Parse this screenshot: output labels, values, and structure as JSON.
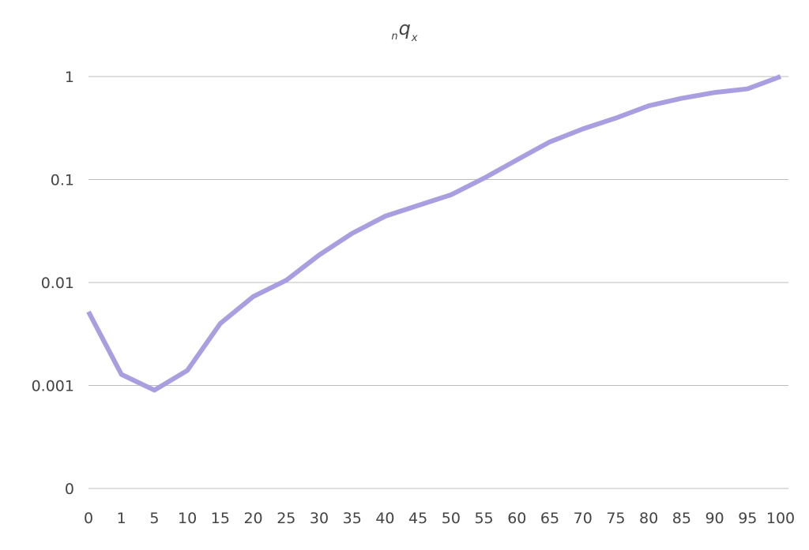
{
  "chart_data": {
    "type": "line",
    "title": "q",
    "title_left_subscript": "n",
    "title_right_subscript": "x",
    "xlabel": "",
    "ylabel": "",
    "y_scale": "log",
    "y_ticks": [
      "0",
      "0.001",
      "0.01",
      "0.1",
      "1"
    ],
    "grid": "horizontal",
    "line_color": "#a89ee0",
    "categories": [
      "0",
      "1",
      "5",
      "10",
      "15",
      "20",
      "25",
      "30",
      "35",
      "40",
      "45",
      "50",
      "55",
      "60",
      "65",
      "70",
      "75",
      "80",
      "85",
      "90",
      "95",
      "100"
    ],
    "series": [
      {
        "values": [
          0.0052,
          0.00128,
          0.0009,
          0.0014,
          0.004,
          0.0073,
          0.0105,
          0.0185,
          0.03,
          0.044,
          0.056,
          0.071,
          0.103,
          0.155,
          0.232,
          0.31,
          0.395,
          0.52,
          0.615,
          0.7,
          0.76,
          1.0
        ]
      }
    ]
  }
}
